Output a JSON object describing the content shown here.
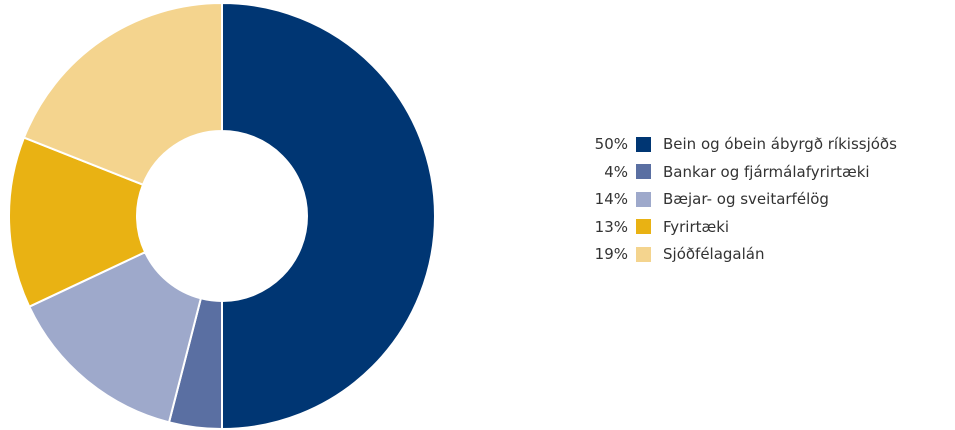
{
  "chart_data": {
    "type": "pie",
    "categories": [
      "Bein og óbein ábyrgð ríkissjóðs",
      "Bankar og fjármálafyrirtæki",
      "Bæjar- og sveitarfélög",
      "Fyrirtæki",
      "Sjóðfélagalán"
    ],
    "values": [
      50,
      4,
      14,
      13,
      19
    ],
    "value_labels": [
      "50%",
      "4%",
      "14%",
      "13%",
      "19%"
    ],
    "colors": [
      "#003673",
      "#5a6fa2",
      "#9ea9cb",
      "#e9b213",
      "#f4d48e"
    ],
    "legend_position": "right",
    "donut": true
  }
}
